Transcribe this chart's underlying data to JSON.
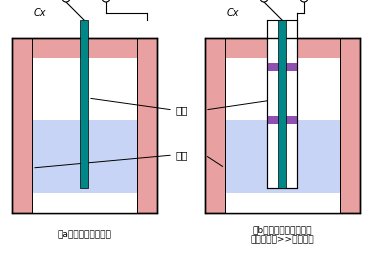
{
  "bg_color": "#ffffff",
  "label_a": "（a）容器为金属材料",
  "label_b": "（b）容器为非金属材料\n或容器直径>>电极直径",
  "cx_label": "Cx",
  "dianji_label": "电极",
  "rongqi_label": "容器",
  "container_outer_color": "#e8a0a0",
  "liquid_color": "#c8d4f5",
  "electrode_color": "#008888",
  "purple_color": "#9050b0",
  "red_circle_color": "#cc2020",
  "line_color": "#000000"
}
